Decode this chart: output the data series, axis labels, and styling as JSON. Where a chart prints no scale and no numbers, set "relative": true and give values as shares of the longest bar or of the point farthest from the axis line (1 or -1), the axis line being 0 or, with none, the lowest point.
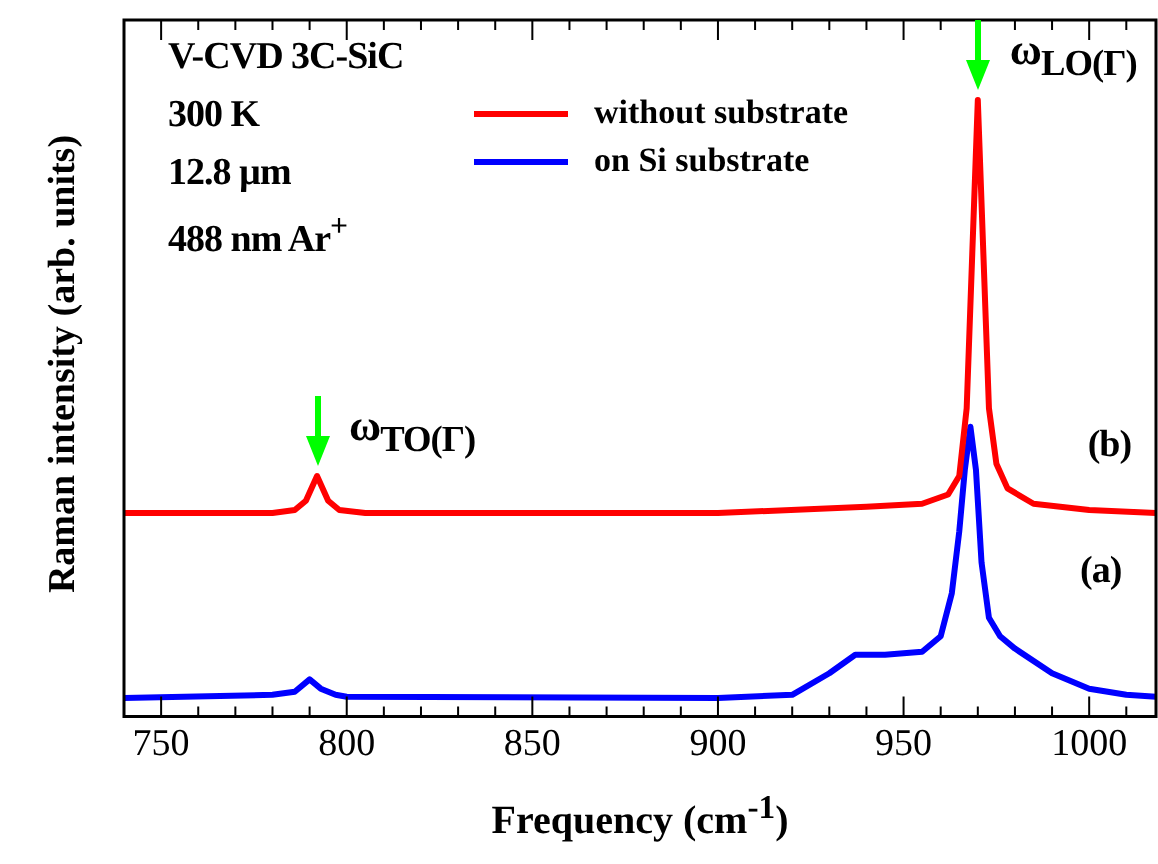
{
  "chart_data": {
    "type": "line",
    "relative": true,
    "xlabel": "Frequency (cm$^{-1}$)",
    "ylabel": "Raman intensity (arb. units)",
    "xlim": [
      740,
      1018
    ],
    "xticks": [
      {
        "value": 740,
        "label": null
      },
      750,
      {
        "value": 760,
        "label": null
      },
      {
        "value": 770,
        "label": null
      },
      {
        "value": 780,
        "label": null
      },
      {
        "value": 790,
        "label": null
      },
      800,
      {
        "value": 810,
        "label": null
      },
      {
        "value": 820,
        "label": null
      },
      {
        "value": 830,
        "label": null
      },
      {
        "value": 840,
        "label": null
      },
      850,
      {
        "value": 860,
        "label": null
      },
      {
        "value": 870,
        "label": null
      },
      {
        "value": 880,
        "label": null
      },
      {
        "value": 890,
        "label": null
      },
      900,
      {
        "value": 910,
        "label": null
      },
      {
        "value": 920,
        "label": null
      },
      {
        "value": 930,
        "label": null
      },
      {
        "value": 940,
        "label": null
      },
      950,
      {
        "value": 960,
        "label": null
      },
      {
        "value": 970,
        "label": null
      },
      {
        "value": 980,
        "label": null
      },
      {
        "value": 990,
        "label": null
      },
      1000,
      {
        "value": 1010,
        "label": null
      }
    ],
    "grid": false,
    "legend": "top",
    "marker": "none",
    "line_style": "solid",
    "series": [
      {
        "name": "without substrate",
        "color": "#ff0000",
        "x": [
          740,
          780,
          786,
          789,
          792,
          795,
          798,
          805,
          900,
          940,
          955,
          962,
          965,
          967,
          968.5,
          970,
          971.5,
          973,
          975,
          978,
          985,
          1000,
          1018
        ],
        "values": [
          0.33,
          0.33,
          0.335,
          0.35,
          0.39,
          0.35,
          0.335,
          0.33,
          0.33,
          0.34,
          0.345,
          0.36,
          0.39,
          0.5,
          0.75,
          1,
          0.75,
          0.5,
          0.41,
          0.37,
          0.345,
          0.335,
          0.33
        ]
      },
      {
        "name": "on Si substrate",
        "color": "#0000ff",
        "x": [
          740,
          780,
          786,
          790,
          793,
          797,
          800,
          900,
          920,
          930,
          937,
          945,
          955,
          960,
          963,
          965,
          966.5,
          968,
          969.5,
          971,
          973,
          976,
          980,
          990,
          1000,
          1010,
          1018
        ],
        "values": [
          0.03,
          0.035,
          0.04,
          0.06,
          0.045,
          0.035,
          0.032,
          0.03,
          0.035,
          0.07,
          0.1,
          0.1,
          0.105,
          0.13,
          0.2,
          0.3,
          0.4,
          0.47,
          0.4,
          0.25,
          0.16,
          0.13,
          0.11,
          0.07,
          0.045,
          0.035,
          0.032
        ]
      }
    ],
    "annotations": [
      "V-CVD 3C-SiC",
      "300 K",
      "12.8 µm",
      "488 nm Ar$^{+}$",
      {
        "text": "ω$_{LO(Γ)}$",
        "x": 970,
        "y": 1
      },
      {
        "text": "ω$_{TO(Γ)}$",
        "x": 792,
        "y": 0.39
      },
      {
        "text": "(b)",
        "x": 1005,
        "y": 0.33
      },
      "(a)"
    ]
  }
}
